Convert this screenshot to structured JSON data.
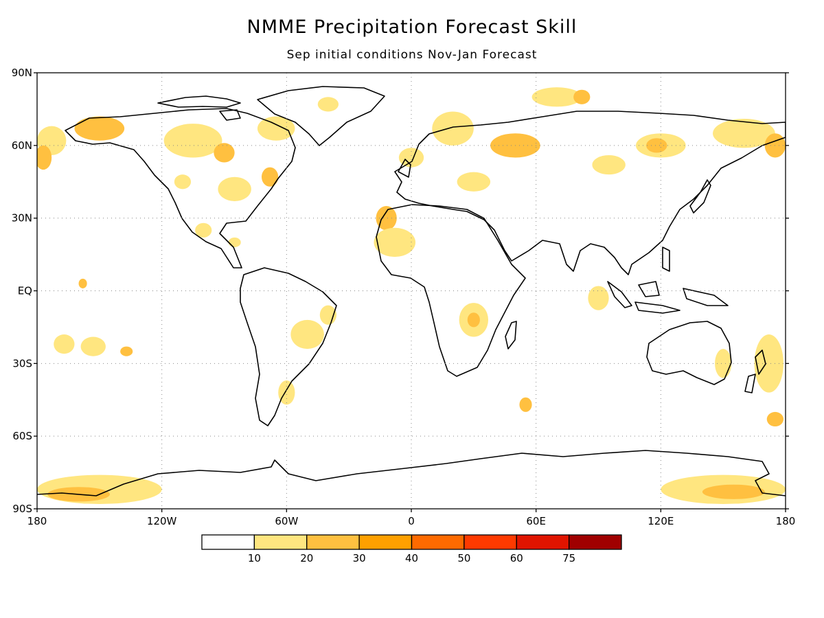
{
  "title": "NMME Precipitation Forecast Skill",
  "subtitle": "Sep initial conditions  Nov-Jan Forecast",
  "map": {
    "projection": "equirectangular",
    "lon_range": [
      -180,
      180
    ],
    "lat_range": [
      -90,
      90
    ],
    "grid": true,
    "lat_ticks": [
      {
        "value": 90,
        "label": "90N"
      },
      {
        "value": 60,
        "label": "60N"
      },
      {
        "value": 30,
        "label": "30N"
      },
      {
        "value": 0,
        "label": "EQ"
      },
      {
        "value": -30,
        "label": "30S"
      },
      {
        "value": -60,
        "label": "60S"
      },
      {
        "value": -90,
        "label": "90S"
      }
    ],
    "lon_ticks": [
      {
        "value": -180,
        "label": "180"
      },
      {
        "value": -120,
        "label": "120W"
      },
      {
        "value": -60,
        "label": "60W"
      },
      {
        "value": 0,
        "label": "0"
      },
      {
        "value": 60,
        "label": "60E"
      },
      {
        "value": 120,
        "label": "120E"
      },
      {
        "value": 180,
        "label": "180"
      }
    ]
  },
  "colorbar": {
    "bins": [
      {
        "color": "#ffffff"
      },
      {
        "color": "#ffe680"
      },
      {
        "color": "#ffc040"
      },
      {
        "color": "#ffa000"
      },
      {
        "color": "#ff6a00"
      },
      {
        "color": "#ff3a00"
      },
      {
        "color": "#e01400"
      },
      {
        "color": "#a00000"
      }
    ],
    "labels": [
      "10",
      "20",
      "30",
      "40",
      "50",
      "60",
      "75"
    ]
  },
  "skill_regions": [
    {
      "lon": -173,
      "lat": 62,
      "rx": 7,
      "ry": 6,
      "level": 1
    },
    {
      "lon": -177,
      "lat": 55,
      "rx": 4,
      "ry": 5,
      "level": 2
    },
    {
      "lon": -150,
      "lat": 67,
      "rx": 12,
      "ry": 5,
      "level": 2
    },
    {
      "lon": -105,
      "lat": 62,
      "rx": 14,
      "ry": 7,
      "level": 1
    },
    {
      "lon": -90,
      "lat": 57,
      "rx": 5,
      "ry": 4,
      "level": 2
    },
    {
      "lon": -110,
      "lat": 45,
      "rx": 4,
      "ry": 3,
      "level": 1
    },
    {
      "lon": -85,
      "lat": 42,
      "rx": 8,
      "ry": 5,
      "level": 1
    },
    {
      "lon": -68,
      "lat": 47,
      "rx": 4,
      "ry": 4,
      "level": 2
    },
    {
      "lon": -65,
      "lat": 67,
      "rx": 9,
      "ry": 5,
      "level": 1
    },
    {
      "lon": -40,
      "lat": 77,
      "rx": 5,
      "ry": 3,
      "level": 1
    },
    {
      "lon": -100,
      "lat": 25,
      "rx": 4,
      "ry": 3,
      "level": 1
    },
    {
      "lon": -85,
      "lat": 20,
      "rx": 3,
      "ry": 2,
      "level": 1
    },
    {
      "lon": -158,
      "lat": 3,
      "rx": 2,
      "ry": 2,
      "level": 2
    },
    {
      "lon": -167,
      "lat": -22,
      "rx": 5,
      "ry": 4,
      "level": 1
    },
    {
      "lon": -153,
      "lat": -23,
      "rx": 6,
      "ry": 4,
      "level": 1
    },
    {
      "lon": -137,
      "lat": -25,
      "rx": 3,
      "ry": 2,
      "level": 2
    },
    {
      "lon": -50,
      "lat": -18,
      "rx": 8,
      "ry": 6,
      "level": 1
    },
    {
      "lon": -60,
      "lat": -42,
      "rx": 4,
      "ry": 5,
      "level": 1
    },
    {
      "lon": -40,
      "lat": -10,
      "rx": 4,
      "ry": 4,
      "level": 1
    },
    {
      "lon": -12,
      "lat": 30,
      "rx": 5,
      "ry": 5,
      "level": 2
    },
    {
      "lon": -8,
      "lat": 20,
      "rx": 10,
      "ry": 6,
      "level": 1
    },
    {
      "lon": 0,
      "lat": 55,
      "rx": 6,
      "ry": 4,
      "level": 1
    },
    {
      "lon": 20,
      "lat": 67,
      "rx": 10,
      "ry": 7,
      "level": 1
    },
    {
      "lon": 50,
      "lat": 60,
      "rx": 12,
      "ry": 5,
      "level": 2
    },
    {
      "lon": 30,
      "lat": 45,
      "rx": 8,
      "ry": 4,
      "level": 1
    },
    {
      "lon": 70,
      "lat": 80,
      "rx": 12,
      "ry": 4,
      "level": 1
    },
    {
      "lon": 82,
      "lat": 80,
      "rx": 4,
      "ry": 3,
      "level": 2
    },
    {
      "lon": 120,
      "lat": 60,
      "rx": 12,
      "ry": 5,
      "level": 1
    },
    {
      "lon": 118,
      "lat": 60,
      "rx": 5,
      "ry": 3,
      "level": 2
    },
    {
      "lon": 95,
      "lat": 52,
      "rx": 8,
      "ry": 4,
      "level": 1
    },
    {
      "lon": 160,
      "lat": 65,
      "rx": 15,
      "ry": 6,
      "level": 1
    },
    {
      "lon": 175,
      "lat": 60,
      "rx": 5,
      "ry": 5,
      "level": 2
    },
    {
      "lon": 30,
      "lat": -12,
      "rx": 7,
      "ry": 7,
      "level": 1
    },
    {
      "lon": 30,
      "lat": -12,
      "rx": 3,
      "ry": 3,
      "level": 2
    },
    {
      "lon": 55,
      "lat": -47,
      "rx": 3,
      "ry": 3,
      "level": 2
    },
    {
      "lon": 90,
      "lat": -3,
      "rx": 5,
      "ry": 5,
      "level": 1
    },
    {
      "lon": 150,
      "lat": -30,
      "rx": 4,
      "ry": 6,
      "level": 1
    },
    {
      "lon": 172,
      "lat": -30,
      "rx": 7,
      "ry": 12,
      "level": 1
    },
    {
      "lon": 175,
      "lat": -53,
      "rx": 4,
      "ry": 3,
      "level": 2
    },
    {
      "lon": -150,
      "lat": -82,
      "rx": 30,
      "ry": 6,
      "level": 1
    },
    {
      "lon": -160,
      "lat": -84,
      "rx": 15,
      "ry": 3,
      "level": 2
    },
    {
      "lon": 150,
      "lat": -82,
      "rx": 30,
      "ry": 6,
      "level": 1
    },
    {
      "lon": 155,
      "lat": -83,
      "rx": 15,
      "ry": 3,
      "level": 2
    }
  ]
}
